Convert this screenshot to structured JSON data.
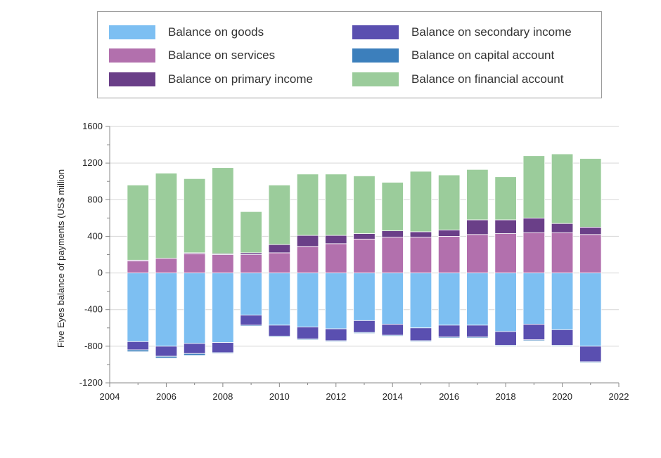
{
  "chart_data": {
    "type": "bar",
    "stacked": true,
    "title": "",
    "xlabel": "",
    "ylabel": "Five Eyes balance of payments (US$ million",
    "ylim": [
      -1200,
      1600
    ],
    "xlim": [
      2004,
      2022
    ],
    "yticks": [
      "1600",
      "1200",
      "800",
      "400",
      "0",
      "-400",
      "-800",
      "-1200"
    ],
    "xticks": [
      "2004",
      "2006",
      "2008",
      "2010",
      "2012",
      "2014",
      "2016",
      "2018",
      "2020",
      "2022"
    ],
    "grid": "horizontal",
    "legend_placement": "top",
    "categories": [
      2005,
      2006,
      2007,
      2008,
      2009,
      2010,
      2011,
      2012,
      2013,
      2014,
      2015,
      2016,
      2017,
      2018,
      2019,
      2020,
      2021
    ],
    "series": [
      {
        "name": "Balance on goods",
        "color": "#7dbff2",
        "values": [
          -750,
          -800,
          -770,
          -760,
          -460,
          -570,
          -590,
          -610,
          -520,
          -560,
          -600,
          -570,
          -570,
          -640,
          -560,
          -620,
          -800
        ]
      },
      {
        "name": "Balance on services",
        "color": "#b270ad",
        "values": [
          130,
          160,
          210,
          200,
          200,
          220,
          290,
          320,
          370,
          390,
          390,
          400,
          420,
          430,
          440,
          440,
          420
        ]
      },
      {
        "name": "Balance on primary income",
        "color": "#6a3f88",
        "values": [
          10,
          0,
          10,
          10,
          20,
          90,
          120,
          90,
          60,
          70,
          60,
          70,
          160,
          150,
          160,
          100,
          80
        ]
      },
      {
        "name": "Balance on secondary income",
        "color": "#5a4fb0",
        "values": [
          -90,
          -110,
          -110,
          -110,
          -110,
          -120,
          -130,
          -130,
          -130,
          -120,
          -140,
          -130,
          -130,
          -150,
          -170,
          -170,
          -170
        ]
      },
      {
        "name": "Balance on capital account",
        "color": "#3c7fbc",
        "values": [
          -20,
          -20,
          -20,
          -10,
          -10,
          -10,
          -10,
          -10,
          -10,
          -10,
          -10,
          -10,
          -10,
          -10,
          -10,
          -10,
          -10
        ]
      },
      {
        "name": "Balance on financial account",
        "color": "#9bcc9b",
        "values": [
          820,
          930,
          810,
          940,
          450,
          650,
          670,
          670,
          630,
          530,
          660,
          600,
          550,
          470,
          680,
          760,
          750
        ]
      }
    ]
  }
}
